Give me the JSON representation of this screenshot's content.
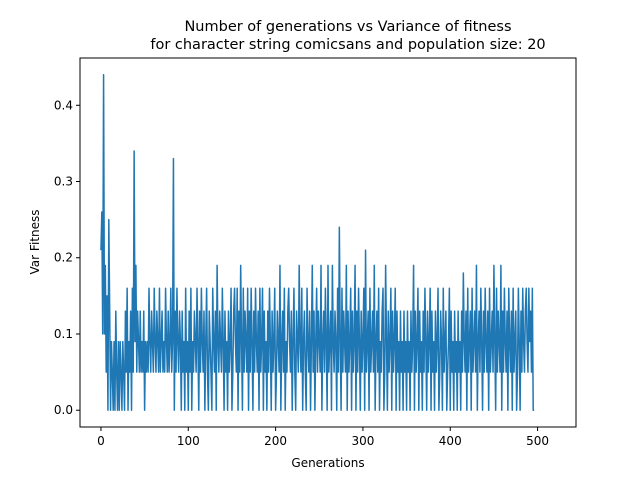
{
  "chart_data": {
    "type": "line",
    "title_lines": [
      "Number of generations vs Variance of fitness",
      "for character string comicsans and population size: 20"
    ],
    "xlabel": "Generations",
    "ylabel": "Var Fitness",
    "xlim": [
      -24,
      544
    ],
    "ylim": [
      -0.022,
      0.462
    ],
    "xticks": [
      0,
      100,
      200,
      300,
      400,
      500
    ],
    "yticks": [
      0.0,
      0.1,
      0.2,
      0.3,
      0.4
    ],
    "ytick_labels": [
      "0.0",
      "0.1",
      "0.2",
      "0.3",
      "0.4"
    ],
    "grid": false,
    "series": [
      {
        "name": "",
        "color": "#1f77b4",
        "x_start": 0,
        "x_step": 1,
        "values": [
          0.21,
          0.26,
          0.1,
          0.44,
          0.1,
          0.19,
          0.05,
          0.15,
          0.0,
          0.25,
          0.13,
          0.0,
          0.09,
          0.05,
          0.0,
          0.09,
          0.0,
          0.13,
          0.05,
          0.0,
          0.09,
          0.0,
          0.09,
          0.05,
          0.0,
          0.09,
          0.05,
          0.0,
          0.13,
          0.05,
          0.16,
          0.0,
          0.09,
          0.05,
          0.13,
          0.0,
          0.16,
          0.05,
          0.34,
          0.09,
          0.19,
          0.05,
          0.13,
          0.09,
          0.05,
          0.13,
          0.05,
          0.09,
          0.05,
          0.13,
          0.0,
          0.09,
          0.05,
          0.09,
          0.05,
          0.16,
          0.09,
          0.05,
          0.13,
          0.09,
          0.05,
          0.16,
          0.09,
          0.05,
          0.13,
          0.09,
          0.05,
          0.16,
          0.05,
          0.09,
          0.13,
          0.05,
          0.09,
          0.05,
          0.16,
          0.09,
          0.05,
          0.13,
          0.05,
          0.09,
          0.16,
          0.05,
          0.09,
          0.33,
          0.0,
          0.13,
          0.05,
          0.16,
          0.09,
          0.05,
          0.13,
          0.09,
          0.0,
          0.13,
          0.05,
          0.09,
          0.0,
          0.16,
          0.05,
          0.09,
          0.0,
          0.13,
          0.05,
          0.16,
          0.0,
          0.09,
          0.05,
          0.13,
          0.09,
          0.05,
          0.16,
          0.09,
          0.0,
          0.13,
          0.05,
          0.16,
          0.09,
          0.05,
          0.13,
          0.0,
          0.09,
          0.16,
          0.05,
          0.0,
          0.13,
          0.09,
          0.05,
          0.0,
          0.16,
          0.09,
          0.05,
          0.13,
          0.0,
          0.19,
          0.09,
          0.05,
          0.13,
          0.09,
          0.05,
          0.16,
          0.09,
          0.0,
          0.13,
          0.05,
          0.09,
          0.0,
          0.13,
          0.05,
          0.09,
          0.16,
          0.0,
          0.05,
          0.13,
          0.16,
          0.09,
          0.05,
          0.16,
          0.0,
          0.13,
          0.05,
          0.19,
          0.09,
          0.0,
          0.16,
          0.05,
          0.13,
          0.09,
          0.05,
          0.16,
          0.0,
          0.13,
          0.05,
          0.16,
          0.09,
          0.0,
          0.13,
          0.05,
          0.16,
          0.09,
          0.05,
          0.13,
          0.0,
          0.16,
          0.05,
          0.09,
          0.16,
          0.0,
          0.13,
          0.05,
          0.09,
          0.0,
          0.13,
          0.05,
          0.16,
          0.09,
          0.0,
          0.13,
          0.05,
          0.09,
          0.16,
          0.0,
          0.05,
          0.13,
          0.09,
          0.05,
          0.19,
          0.0,
          0.09,
          0.13,
          0.05,
          0.16,
          0.0,
          0.09,
          0.05,
          0.13,
          0.16,
          0.09,
          0.05,
          0.13,
          0.0,
          0.09,
          0.16,
          0.05,
          0.0,
          0.13,
          0.09,
          0.05,
          0.19,
          0.09,
          0.05,
          0.16,
          0.0,
          0.09,
          0.13,
          0.05,
          0.0,
          0.16,
          0.09,
          0.05,
          0.13,
          0.0,
          0.09,
          0.19,
          0.05,
          0.13,
          0.0,
          0.09,
          0.16,
          0.05,
          0.13,
          0.09,
          0.05,
          0.19,
          0.0,
          0.09,
          0.13,
          0.05,
          0.16,
          0.09,
          0.0,
          0.19,
          0.05,
          0.09,
          0.13,
          0.0,
          0.19,
          0.09,
          0.05,
          0.13,
          0.09,
          0.0,
          0.16,
          0.05,
          0.24,
          0.09,
          0.0,
          0.16,
          0.05,
          0.13,
          0.09,
          0.05,
          0.19,
          0.0,
          0.13,
          0.05,
          0.09,
          0.16,
          0.0,
          0.13,
          0.05,
          0.09,
          0.19,
          0.0,
          0.13,
          0.05,
          0.16,
          0.09,
          0.0,
          0.13,
          0.05,
          0.09,
          0.16,
          0.0,
          0.21,
          0.05,
          0.09,
          0.13,
          0.0,
          0.16,
          0.05,
          0.09,
          0.13,
          0.05,
          0.19,
          0.0,
          0.09,
          0.13,
          0.05,
          0.16,
          0.0,
          0.09,
          0.05,
          0.13,
          0.16,
          0.0,
          0.05,
          0.19,
          0.09,
          0.0,
          0.13,
          0.05,
          0.09,
          0.16,
          0.0,
          0.13,
          0.05,
          0.09,
          0.16,
          0.0,
          0.13,
          0.05,
          0.09,
          0.0,
          0.13,
          0.05,
          0.09,
          0.0,
          0.13,
          0.05,
          0.09,
          0.0,
          0.13,
          0.05,
          0.09,
          0.0,
          0.13,
          0.05,
          0.09,
          0.19,
          0.0,
          0.13,
          0.05,
          0.09,
          0.16,
          0.0,
          0.13,
          0.05,
          0.09,
          0.0,
          0.13,
          0.05,
          0.16,
          0.09,
          0.0,
          0.13,
          0.05,
          0.09,
          0.16,
          0.0,
          0.13,
          0.05,
          0.09,
          0.0,
          0.13,
          0.05,
          0.09,
          0.16,
          0.0,
          0.05,
          0.13,
          0.09,
          0.0,
          0.16,
          0.05,
          0.09,
          0.13,
          0.0,
          0.05,
          0.09,
          0.16,
          0.0,
          0.13,
          0.05,
          0.09,
          0.0,
          0.13,
          0.05,
          0.09,
          0.0,
          0.13,
          0.05,
          0.09,
          0.0,
          0.13,
          0.05,
          0.18,
          0.09,
          0.05,
          0.13,
          0.0,
          0.16,
          0.05,
          0.09,
          0.13,
          0.0,
          0.16,
          0.05,
          0.09,
          0.13,
          0.05,
          0.19,
          0.0,
          0.09,
          0.13,
          0.05,
          0.16,
          0.09,
          0.0,
          0.13,
          0.05,
          0.16,
          0.09,
          0.05,
          0.13,
          0.0,
          0.16,
          0.05,
          0.09,
          0.13,
          0.05,
          0.19,
          0.09,
          0.0,
          0.16,
          0.05,
          0.13,
          0.09,
          0.05,
          0.19,
          0.0,
          0.13,
          0.05,
          0.16,
          0.09,
          0.05,
          0.13,
          0.0,
          0.16,
          0.09,
          0.05,
          0.13,
          0.0,
          0.16,
          0.05,
          0.09,
          0.13,
          0.0,
          0.05,
          0.16,
          0.09,
          0.0,
          0.13,
          0.05,
          0.16,
          0.09,
          0.05,
          0.13,
          0.16,
          0.09,
          0.05,
          0.16,
          0.09,
          0.13,
          0.05,
          0.16,
          0.0,
          0.0
        ]
      }
    ]
  }
}
